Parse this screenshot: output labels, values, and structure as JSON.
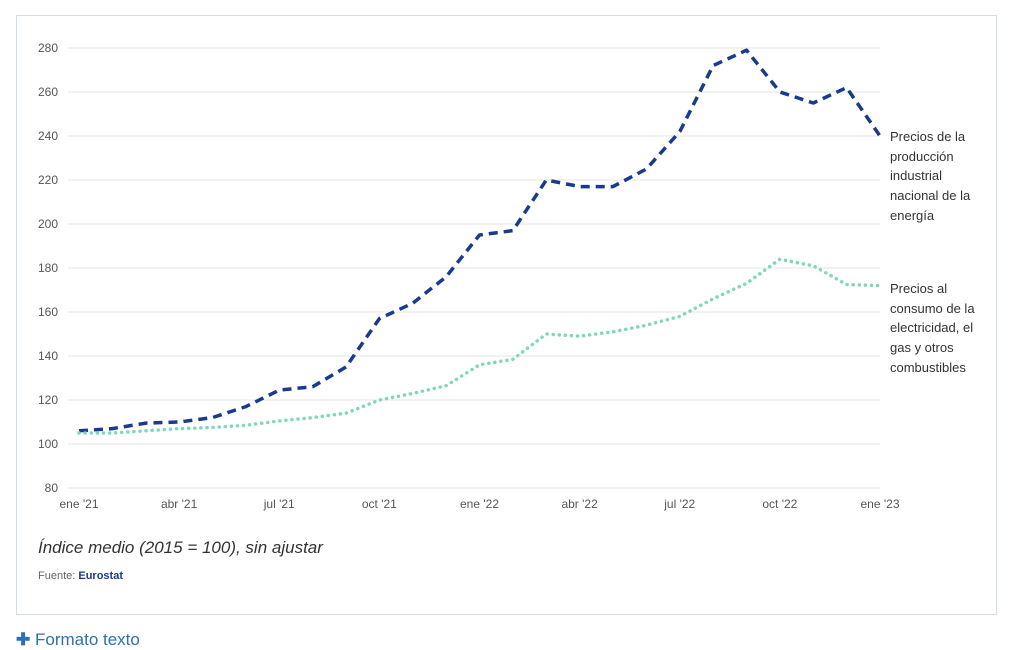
{
  "chart_data": {
    "type": "line",
    "x": [
      "ene '21",
      "feb '21",
      "mar '21",
      "abr '21",
      "may '21",
      "jun '21",
      "jul '21",
      "ago '21",
      "sep '21",
      "oct '21",
      "nov '21",
      "dic '21",
      "ene '22",
      "feb '22",
      "mar '22",
      "abr '22",
      "may '22",
      "jun '22",
      "jul '22",
      "ago '22",
      "sep '22",
      "oct '22",
      "nov '22",
      "dic '22",
      "ene '23"
    ],
    "x_tick_labels": [
      "ene '21",
      "abr '21",
      "jul '21",
      "oct '21",
      "ene '22",
      "abr '22",
      "jul '22",
      "oct '22",
      "ene '23"
    ],
    "y_ticks": [
      80,
      100,
      120,
      140,
      160,
      180,
      200,
      220,
      240,
      260,
      280
    ],
    "ylim": [
      80,
      280
    ],
    "grid": true,
    "series": [
      {
        "name": "Precios de la producción industrial nacional de la energía",
        "color": "#1a3a8f",
        "style": "dashed",
        "values": [
          106,
          107,
          109.5,
          110,
          112,
          117,
          124.5,
          126,
          135,
          157,
          164,
          176,
          195,
          197,
          220,
          217,
          217,
          225,
          242,
          272,
          279,
          260,
          255,
          262,
          240
        ]
      },
      {
        "name": "Precios al consumo de la electricidad, el gas y otros combustibles",
        "color": "#7fd8bd",
        "style": "dotted",
        "values": [
          105,
          105,
          106,
          107,
          107.5,
          108.5,
          110.5,
          112,
          114,
          120,
          123,
          126.5,
          136,
          138.5,
          150,
          149,
          151,
          154,
          158,
          166,
          173,
          184,
          181,
          172.5,
          172
        ]
      }
    ],
    "legend_placement": "right (inline at line ends)"
  },
  "caption": {
    "subtitle": "Índice medio (2015 = 100), sin ajustar",
    "source_label": "Fuente:",
    "source_name": "Eurostat"
  },
  "footer_link": {
    "icon": "plus-icon",
    "label": "Formato texto"
  }
}
